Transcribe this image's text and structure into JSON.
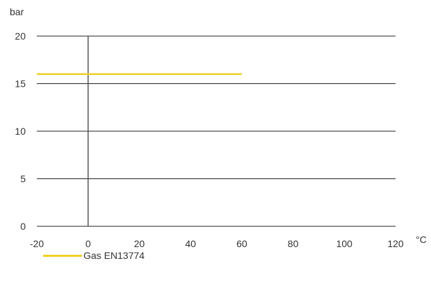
{
  "chart_data": {
    "type": "line",
    "y_unit": "bar",
    "x_unit": "°C",
    "xlim": [
      -20,
      120
    ],
    "ylim": [
      0,
      20
    ],
    "x_ticks": [
      "-20",
      "0",
      "20",
      "40",
      "60",
      "80",
      "100",
      "120"
    ],
    "y_ticks": [
      "0",
      "5",
      "10",
      "15",
      "20"
    ],
    "grid": "horizontal",
    "legend_placement": "bottom-left",
    "series": [
      {
        "name": "Gas EN13774",
        "color": "#f2d024",
        "x": [
          -20,
          60
        ],
        "y": [
          16,
          16
        ]
      }
    ]
  }
}
